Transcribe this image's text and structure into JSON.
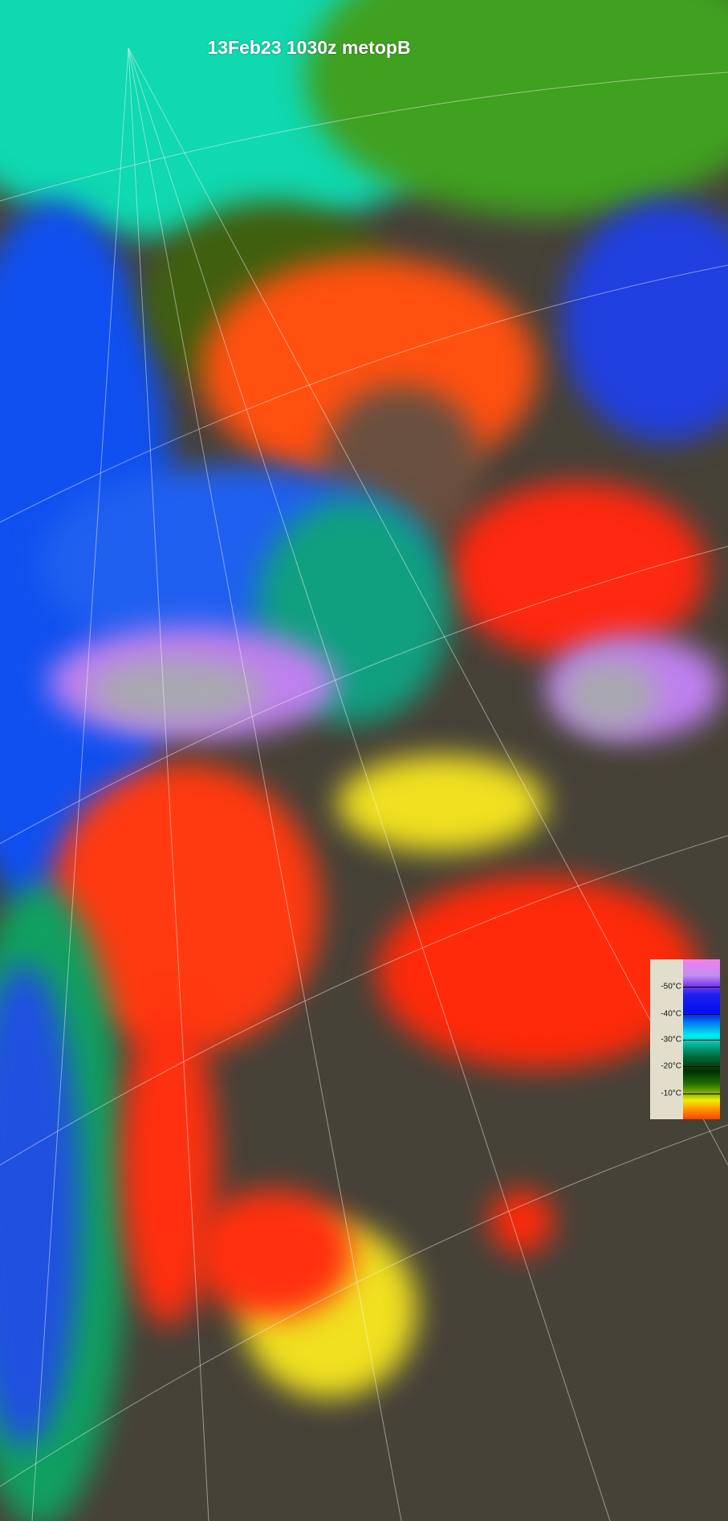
{
  "title": "13Feb23 1030z metopB",
  "legend": {
    "ticks": [
      "-50°C",
      "-40°C",
      "-30°C",
      "-20°C",
      "-10°C"
    ],
    "tick_fractions": [
      0.17,
      0.34,
      0.505,
      0.67,
      0.84
    ],
    "colors": [
      "#f080f0",
      "#0010f0",
      "#00f0f0",
      "#003000",
      "#f0f000",
      "#ff4000"
    ]
  },
  "palette": {
    "clear_ground": "#474238",
    "warm_cloud": "#ff3a10",
    "cold_cloud": "#00d8a8"
  }
}
